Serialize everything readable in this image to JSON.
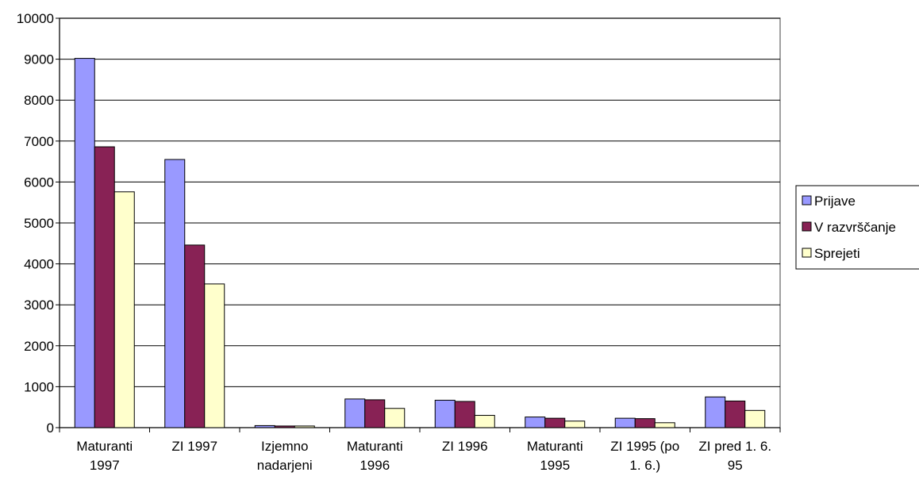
{
  "chart_data": {
    "type": "bar",
    "categories": [
      "Maturanti 1997",
      "ZI 1997",
      "Izjemno nadarjeni",
      "Maturanti 1996",
      "ZI 1996",
      "Maturanti 1995",
      "ZI 1995 (po 1. 6.)",
      "ZI pred 1. 6. 95"
    ],
    "series": [
      {
        "name": "Prijave",
        "color": "#9999ff",
        "values": [
          9020,
          6550,
          50,
          700,
          670,
          260,
          230,
          750
        ]
      },
      {
        "name": "V razvrščanje",
        "color": "#882255",
        "values": [
          6860,
          4460,
          40,
          680,
          640,
          230,
          220,
          650
        ]
      },
      {
        "name": "Sprejeti",
        "color": "#ffffcc",
        "values": [
          5760,
          3510,
          40,
          470,
          300,
          160,
          120,
          420
        ]
      }
    ],
    "ylim": [
      0,
      10000
    ],
    "yticks": [
      0,
      1000,
      2000,
      3000,
      4000,
      5000,
      6000,
      7000,
      8000,
      9000,
      10000
    ],
    "grid": true,
    "legend": "right"
  }
}
